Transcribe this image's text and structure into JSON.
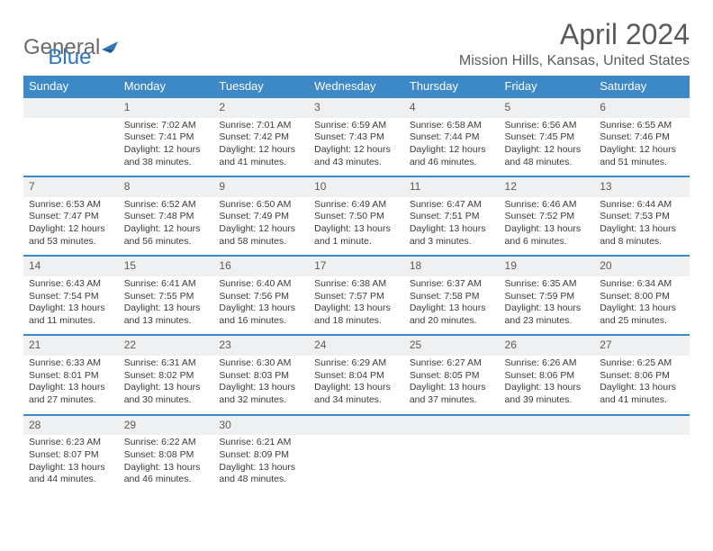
{
  "logo": {
    "text1": "General",
    "text2": "Blue"
  },
  "title": "April 2024",
  "location": "Mission Hills, Kansas, United States",
  "colors": {
    "header_bg": "#3d88c7",
    "header_text": "#ffffff",
    "daynum_bg": "#eef0f1",
    "row_divider": "#3d88c7",
    "body_text": "#3a3a3a",
    "title_text": "#5a5a5a",
    "logo_gray": "#6b6b6b",
    "logo_blue": "#2f77b8"
  },
  "weekdays": [
    "Sunday",
    "Monday",
    "Tuesday",
    "Wednesday",
    "Thursday",
    "Friday",
    "Saturday"
  ],
  "weeks": [
    [
      null,
      {
        "n": "1",
        "sr": "Sunrise: 7:02 AM",
        "ss": "Sunset: 7:41 PM",
        "d1": "Daylight: 12 hours",
        "d2": "and 38 minutes."
      },
      {
        "n": "2",
        "sr": "Sunrise: 7:01 AM",
        "ss": "Sunset: 7:42 PM",
        "d1": "Daylight: 12 hours",
        "d2": "and 41 minutes."
      },
      {
        "n": "3",
        "sr": "Sunrise: 6:59 AM",
        "ss": "Sunset: 7:43 PM",
        "d1": "Daylight: 12 hours",
        "d2": "and 43 minutes."
      },
      {
        "n": "4",
        "sr": "Sunrise: 6:58 AM",
        "ss": "Sunset: 7:44 PM",
        "d1": "Daylight: 12 hours",
        "d2": "and 46 minutes."
      },
      {
        "n": "5",
        "sr": "Sunrise: 6:56 AM",
        "ss": "Sunset: 7:45 PM",
        "d1": "Daylight: 12 hours",
        "d2": "and 48 minutes."
      },
      {
        "n": "6",
        "sr": "Sunrise: 6:55 AM",
        "ss": "Sunset: 7:46 PM",
        "d1": "Daylight: 12 hours",
        "d2": "and 51 minutes."
      }
    ],
    [
      {
        "n": "7",
        "sr": "Sunrise: 6:53 AM",
        "ss": "Sunset: 7:47 PM",
        "d1": "Daylight: 12 hours",
        "d2": "and 53 minutes."
      },
      {
        "n": "8",
        "sr": "Sunrise: 6:52 AM",
        "ss": "Sunset: 7:48 PM",
        "d1": "Daylight: 12 hours",
        "d2": "and 56 minutes."
      },
      {
        "n": "9",
        "sr": "Sunrise: 6:50 AM",
        "ss": "Sunset: 7:49 PM",
        "d1": "Daylight: 12 hours",
        "d2": "and 58 minutes."
      },
      {
        "n": "10",
        "sr": "Sunrise: 6:49 AM",
        "ss": "Sunset: 7:50 PM",
        "d1": "Daylight: 13 hours",
        "d2": "and 1 minute."
      },
      {
        "n": "11",
        "sr": "Sunrise: 6:47 AM",
        "ss": "Sunset: 7:51 PM",
        "d1": "Daylight: 13 hours",
        "d2": "and 3 minutes."
      },
      {
        "n": "12",
        "sr": "Sunrise: 6:46 AM",
        "ss": "Sunset: 7:52 PM",
        "d1": "Daylight: 13 hours",
        "d2": "and 6 minutes."
      },
      {
        "n": "13",
        "sr": "Sunrise: 6:44 AM",
        "ss": "Sunset: 7:53 PM",
        "d1": "Daylight: 13 hours",
        "d2": "and 8 minutes."
      }
    ],
    [
      {
        "n": "14",
        "sr": "Sunrise: 6:43 AM",
        "ss": "Sunset: 7:54 PM",
        "d1": "Daylight: 13 hours",
        "d2": "and 11 minutes."
      },
      {
        "n": "15",
        "sr": "Sunrise: 6:41 AM",
        "ss": "Sunset: 7:55 PM",
        "d1": "Daylight: 13 hours",
        "d2": "and 13 minutes."
      },
      {
        "n": "16",
        "sr": "Sunrise: 6:40 AM",
        "ss": "Sunset: 7:56 PM",
        "d1": "Daylight: 13 hours",
        "d2": "and 16 minutes."
      },
      {
        "n": "17",
        "sr": "Sunrise: 6:38 AM",
        "ss": "Sunset: 7:57 PM",
        "d1": "Daylight: 13 hours",
        "d2": "and 18 minutes."
      },
      {
        "n": "18",
        "sr": "Sunrise: 6:37 AM",
        "ss": "Sunset: 7:58 PM",
        "d1": "Daylight: 13 hours",
        "d2": "and 20 minutes."
      },
      {
        "n": "19",
        "sr": "Sunrise: 6:35 AM",
        "ss": "Sunset: 7:59 PM",
        "d1": "Daylight: 13 hours",
        "d2": "and 23 minutes."
      },
      {
        "n": "20",
        "sr": "Sunrise: 6:34 AM",
        "ss": "Sunset: 8:00 PM",
        "d1": "Daylight: 13 hours",
        "d2": "and 25 minutes."
      }
    ],
    [
      {
        "n": "21",
        "sr": "Sunrise: 6:33 AM",
        "ss": "Sunset: 8:01 PM",
        "d1": "Daylight: 13 hours",
        "d2": "and 27 minutes."
      },
      {
        "n": "22",
        "sr": "Sunrise: 6:31 AM",
        "ss": "Sunset: 8:02 PM",
        "d1": "Daylight: 13 hours",
        "d2": "and 30 minutes."
      },
      {
        "n": "23",
        "sr": "Sunrise: 6:30 AM",
        "ss": "Sunset: 8:03 PM",
        "d1": "Daylight: 13 hours",
        "d2": "and 32 minutes."
      },
      {
        "n": "24",
        "sr": "Sunrise: 6:29 AM",
        "ss": "Sunset: 8:04 PM",
        "d1": "Daylight: 13 hours",
        "d2": "and 34 minutes."
      },
      {
        "n": "25",
        "sr": "Sunrise: 6:27 AM",
        "ss": "Sunset: 8:05 PM",
        "d1": "Daylight: 13 hours",
        "d2": "and 37 minutes."
      },
      {
        "n": "26",
        "sr": "Sunrise: 6:26 AM",
        "ss": "Sunset: 8:06 PM",
        "d1": "Daylight: 13 hours",
        "d2": "and 39 minutes."
      },
      {
        "n": "27",
        "sr": "Sunrise: 6:25 AM",
        "ss": "Sunset: 8:06 PM",
        "d1": "Daylight: 13 hours",
        "d2": "and 41 minutes."
      }
    ],
    [
      {
        "n": "28",
        "sr": "Sunrise: 6:23 AM",
        "ss": "Sunset: 8:07 PM",
        "d1": "Daylight: 13 hours",
        "d2": "and 44 minutes."
      },
      {
        "n": "29",
        "sr": "Sunrise: 6:22 AM",
        "ss": "Sunset: 8:08 PM",
        "d1": "Daylight: 13 hours",
        "d2": "and 46 minutes."
      },
      {
        "n": "30",
        "sr": "Sunrise: 6:21 AM",
        "ss": "Sunset: 8:09 PM",
        "d1": "Daylight: 13 hours",
        "d2": "and 48 minutes."
      },
      null,
      null,
      null,
      null
    ]
  ]
}
